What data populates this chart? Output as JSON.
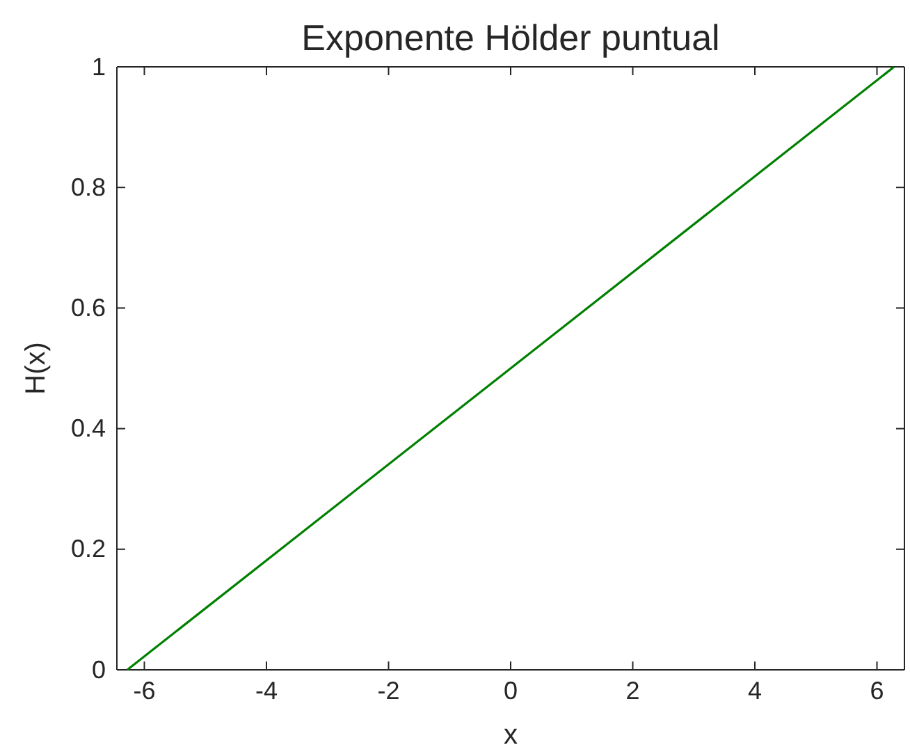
{
  "chart_data": {
    "type": "line",
    "title": "Exponente Hölder puntual",
    "xlabel": "x",
    "ylabel": "H(x)",
    "x": [
      -6.28,
      6.28
    ],
    "series": [
      {
        "color": "#008000",
        "values": [
          0,
          1
        ]
      }
    ],
    "xlim": [
      -6.45,
      6.45
    ],
    "xticks": [
      -6,
      -4,
      -2,
      0,
      2,
      4,
      6
    ],
    "ylim": [
      0,
      1
    ],
    "yticks": [
      0,
      0.2,
      0.4,
      0.6,
      0.8,
      1
    ],
    "grid": false,
    "marker": "none",
    "line_style": "solid"
  }
}
